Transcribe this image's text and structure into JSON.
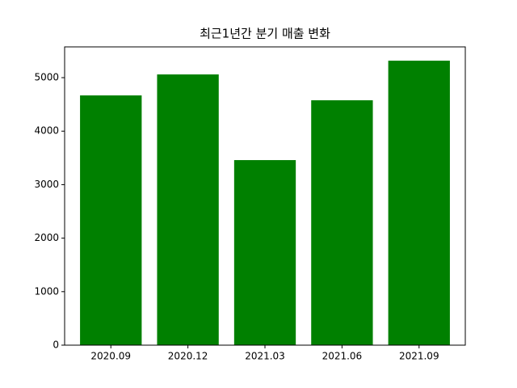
{
  "chart_data": {
    "type": "bar",
    "title": "최근1년간 분기 매출 변화",
    "categories": [
      "2020.09",
      "2020.12",
      "2021.03",
      "2021.06",
      "2021.09"
    ],
    "values": [
      4668,
      5060,
      3459,
      4577,
      5317
    ],
    "color": "#008000",
    "ylim": [
      0,
      5575
    ],
    "yticks": [
      0,
      1000,
      2000,
      3000,
      4000,
      5000
    ],
    "grid": false
  }
}
